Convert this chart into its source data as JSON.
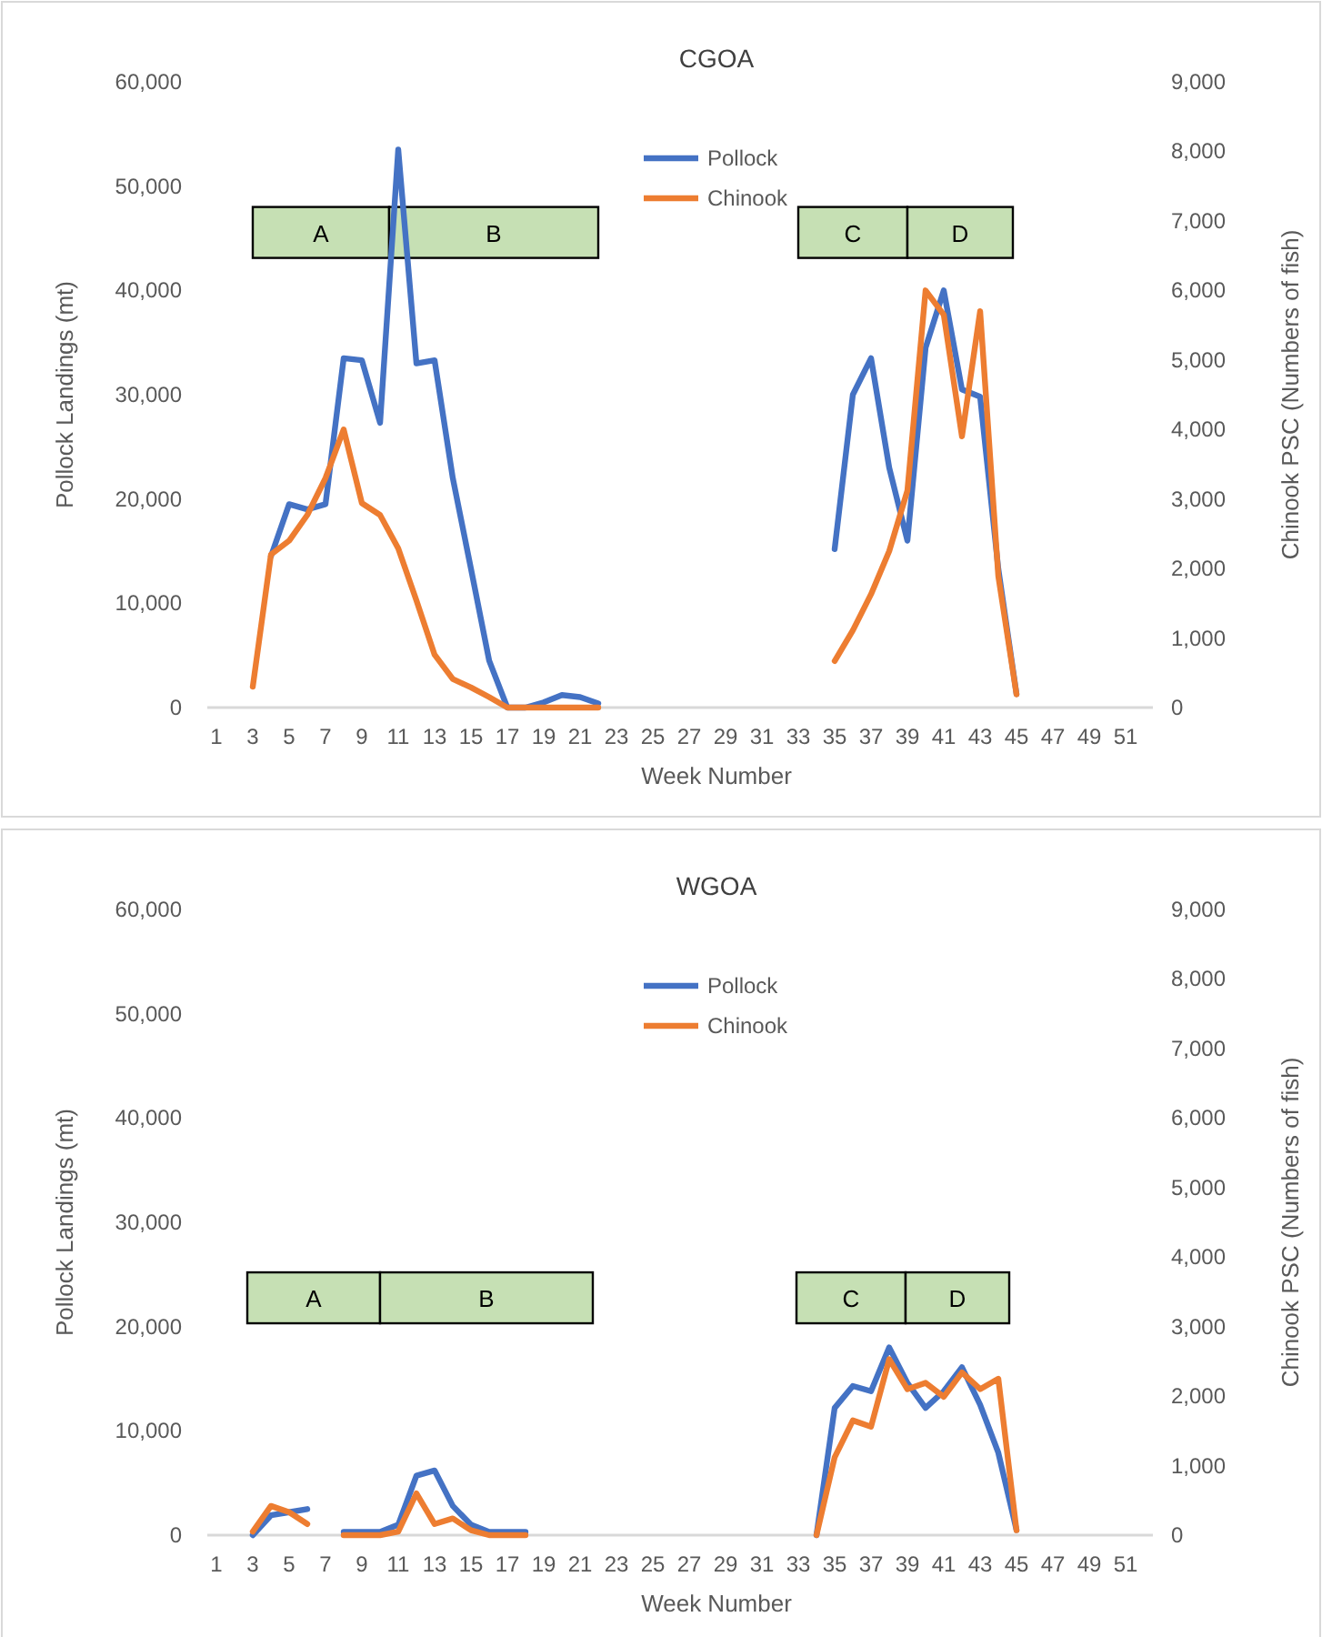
{
  "chart_data": [
    {
      "type": "line",
      "title": "CGOA",
      "xlabel": "Week Number",
      "ylabel": "Pollock Landings (mt)",
      "y2label": "Chinook PSC (Numbers of fish)",
      "xlim": [
        0.5,
        52.5
      ],
      "xticks": [
        1,
        3,
        5,
        7,
        9,
        11,
        13,
        15,
        17,
        19,
        21,
        23,
        25,
        27,
        29,
        31,
        33,
        35,
        37,
        39,
        41,
        43,
        45,
        47,
        49,
        51
      ],
      "ylim": [
        0,
        60000
      ],
      "yticks": [
        0,
        {
          "value": 10000,
          "label": "10,000"
        },
        {
          "value": 20000,
          "label": "20,000"
        },
        {
          "value": 30000,
          "label": "30,000"
        },
        {
          "value": 40000,
          "label": "40,000"
        },
        {
          "value": 50000,
          "label": "50,000"
        },
        {
          "value": 60000,
          "label": "60,000"
        }
      ],
      "y2lim": [
        0,
        9000
      ],
      "y2ticks": [
        0,
        {
          "value": 1000,
          "label": "1,000"
        },
        {
          "value": 2000,
          "label": "2,000"
        },
        {
          "value": 3000,
          "label": "3,000"
        },
        {
          "value": 4000,
          "label": "4,000"
        },
        {
          "value": 5000,
          "label": "5,000"
        },
        {
          "value": 6000,
          "label": "6,000"
        },
        {
          "value": 7000,
          "label": "7,000"
        },
        {
          "value": 8000,
          "label": "8,000"
        },
        {
          "value": 9000,
          "label": "9,000"
        }
      ],
      "legend": "top",
      "marker": "none",
      "series": [
        {
          "name": "Pollock",
          "color": "#4472c4",
          "x": [
            4,
            5,
            6,
            7,
            8,
            9,
            10,
            11,
            12,
            13,
            14,
            15,
            16,
            17,
            18,
            19,
            20,
            21,
            22,
            35,
            36,
            37,
            38,
            39,
            40,
            41,
            42,
            43,
            44,
            45
          ],
          "values": [
            14500,
            19500,
            19000,
            19500,
            33500,
            33300,
            27300,
            53500,
            33000,
            33300,
            22000,
            13300,
            4500,
            0,
            0,
            500,
            1200,
            1000,
            400,
            15200,
            30000,
            33500,
            23000,
            16000,
            34500,
            40000,
            30500,
            29800,
            13300,
            1300
          ]
        },
        {
          "name": "Chinook",
          "color": "#ed7d31",
          "axis": "y2",
          "x": [
            3,
            4,
            5,
            6,
            7,
            8,
            9,
            10,
            11,
            12,
            13,
            14,
            15,
            16,
            17,
            18,
            19,
            20,
            21,
            22,
            35,
            36,
            37,
            38,
            39,
            40,
            41,
            42,
            43,
            44,
            45
          ],
          "values": [
            300,
            2200,
            2400,
            2770,
            3300,
            4000,
            2940,
            2770,
            2290,
            1540,
            760,
            410,
            290,
            150,
            0,
            0,
            0,
            0,
            0,
            0,
            670,
            1110,
            1630,
            2250,
            3120,
            6000,
            5650,
            3900,
            5700,
            1890,
            190
          ]
        }
      ],
      "bands": [
        {
          "axis": "x",
          "from": 3,
          "to": 10.5,
          "label": "A",
          "color": "#c6e0b4"
        },
        {
          "axis": "x",
          "from": 10.5,
          "to": 22,
          "label": "B",
          "color": "#c6e0b4"
        },
        {
          "axis": "x",
          "from": 33,
          "to": 39,
          "label": "C",
          "color": "#c6e0b4"
        },
        {
          "axis": "x",
          "from": 39,
          "to": 44.8,
          "label": "D",
          "color": "#c6e0b4"
        }
      ]
    },
    {
      "type": "line",
      "title": "WGOA",
      "xlabel": "Week Number",
      "ylabel": "Pollock Landings (mt)",
      "y2label": "Chinook PSC (Numbers of fish)",
      "xlim": [
        0.5,
        52.5
      ],
      "xticks": [
        1,
        3,
        5,
        7,
        9,
        11,
        13,
        15,
        17,
        19,
        21,
        23,
        25,
        27,
        29,
        31,
        33,
        35,
        37,
        39,
        41,
        43,
        45,
        47,
        49,
        51
      ],
      "ylim": [
        0,
        60000
      ],
      "yticks": [
        0,
        {
          "value": 10000,
          "label": "10,000"
        },
        {
          "value": 20000,
          "label": "20,000"
        },
        {
          "value": 30000,
          "label": "30,000"
        },
        {
          "value": 40000,
          "label": "40,000"
        },
        {
          "value": 50000,
          "label": "50,000"
        },
        {
          "value": 60000,
          "label": "60,000"
        }
      ],
      "y2lim": [
        0,
        9000
      ],
      "y2ticks": [
        0,
        {
          "value": 1000,
          "label": "1,000"
        },
        {
          "value": 2000,
          "label": "2,000"
        },
        {
          "value": 3000,
          "label": "3,000"
        },
        {
          "value": 4000,
          "label": "4,000"
        },
        {
          "value": 5000,
          "label": "5,000"
        },
        {
          "value": 6000,
          "label": "6,000"
        },
        {
          "value": 7000,
          "label": "7,000"
        },
        {
          "value": 8000,
          "label": "8,000"
        },
        {
          "value": 9000,
          "label": "9,000"
        }
      ],
      "legend": "top",
      "marker": "none",
      "series": [
        {
          "name": "Pollock",
          "color": "#4472c4",
          "x": [
            3,
            4,
            5,
            6,
            8,
            9,
            10,
            11,
            12,
            13,
            14,
            15,
            16,
            17,
            18,
            34,
            35,
            36,
            37,
            38,
            39,
            40,
            41,
            42,
            43,
            44,
            45
          ],
          "values": [
            0,
            1900,
            2200,
            2500,
            300,
            300,
            300,
            1000,
            5700,
            6200,
            2800,
            1000,
            300,
            300,
            300,
            0,
            12200,
            14300,
            13800,
            18000,
            14600,
            12200,
            13800,
            16100,
            12500,
            7900,
            500
          ]
        },
        {
          "name": "Chinook",
          "color": "#ed7d31",
          "axis": "y2",
          "x": [
            3,
            4,
            5,
            6,
            8,
            9,
            10,
            11,
            12,
            13,
            14,
            15,
            16,
            17,
            18,
            34,
            35,
            36,
            37,
            38,
            39,
            40,
            41,
            42,
            43,
            44,
            45
          ],
          "values": [
            50,
            420,
            330,
            160,
            0,
            0,
            0,
            50,
            600,
            160,
            240,
            70,
            0,
            0,
            0,
            0,
            1120,
            1650,
            1560,
            2530,
            2100,
            2190,
            1990,
            2340,
            2100,
            2250,
            70
          ]
        }
      ],
      "bands": [
        {
          "axis": "x",
          "from": 2.7,
          "to": 10,
          "label": "A",
          "color": "#c6e0b4"
        },
        {
          "axis": "x",
          "from": 10,
          "to": 21.7,
          "label": "B",
          "color": "#c6e0b4"
        },
        {
          "axis": "x",
          "from": 32.9,
          "to": 38.9,
          "label": "C",
          "color": "#c6e0b4"
        },
        {
          "axis": "x",
          "from": 38.9,
          "to": 44.6,
          "label": "D",
          "color": "#c6e0b4"
        }
      ]
    }
  ]
}
